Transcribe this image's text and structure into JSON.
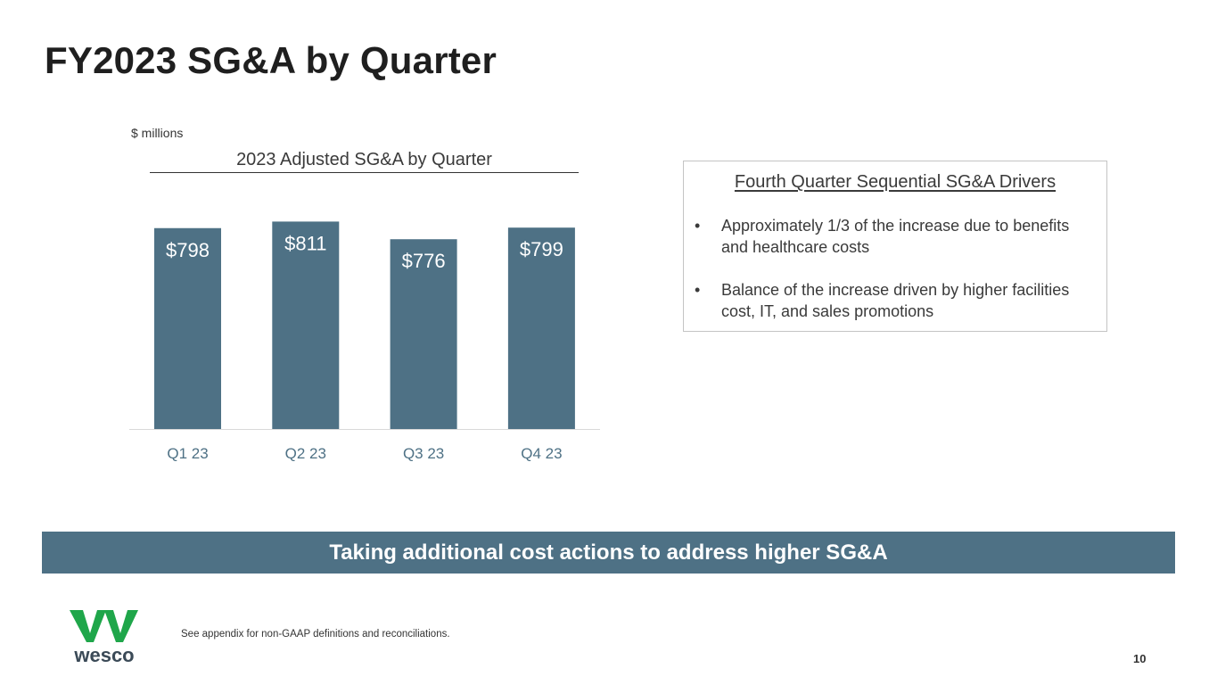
{
  "page": {
    "title": "FY2023 SG&A by Quarter",
    "units_label": "$ millions",
    "banner_text": "Taking additional cost actions to address higher SG&A",
    "footnote": "See appendix for non-GAAP definitions and reconciliations.",
    "page_number": "10",
    "logo_text": "wesco"
  },
  "panel": {
    "heading": "Fourth Quarter Sequential SG&A Drivers",
    "bullets": [
      "Approximately 1/3 of the increase due to benefits and healthcare costs",
      "Balance of the increase driven by higher facilities cost, IT, and sales promotions"
    ],
    "bullet_symbol": "•"
  },
  "colors": {
    "bar": "#4e7185",
    "banner": "#4e7185",
    "logo_green": "#1fa64a",
    "logo_text": "#3b4a57"
  },
  "chart_data": {
    "type": "bar",
    "title": "2023 Adjusted SG&A by Quarter",
    "categories": [
      "Q1 23",
      "Q2 23",
      "Q3 23",
      "Q4 23"
    ],
    "values": [
      798,
      811,
      776,
      799
    ],
    "data_labels": [
      "$798",
      "$811",
      "$776",
      "$799"
    ],
    "xlabel": "",
    "ylabel": "$ millions",
    "ylim": [
      400,
      840
    ],
    "grid": false
  }
}
